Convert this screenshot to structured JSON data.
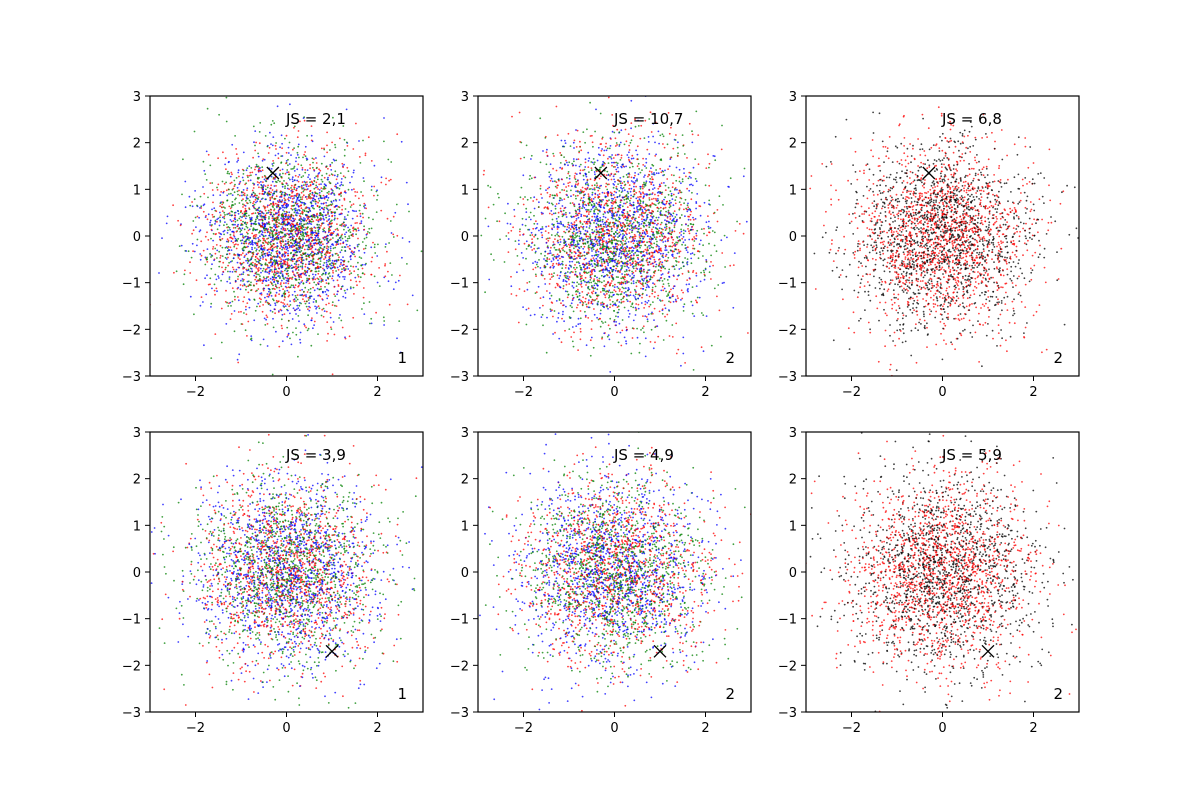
{
  "chart_data": [
    {
      "type": "scatter",
      "title": "",
      "xlabel": "",
      "ylabel": "",
      "xlim": [
        -3,
        3
      ],
      "ylim": [
        -3,
        3
      ],
      "xticks": [
        -2,
        0,
        2
      ],
      "yticks": [
        -3,
        -2,
        -1,
        0,
        1,
        2,
        3
      ],
      "xtick_labels": [
        "−2",
        "0",
        "2"
      ],
      "ytick_labels": [
        "−3",
        "−2",
        "−1",
        "0",
        "1",
        "2",
        "3"
      ],
      "grid": false,
      "annotation_text": "JS = 2,1",
      "corner_label": "1",
      "marker": {
        "x": -0.3,
        "y": 1.35,
        "symbol": "x",
        "color": "#000000"
      },
      "series": [
        {
          "color": "#ff0000",
          "distribution": "normal",
          "mean": [
            0,
            0
          ],
          "std": 0.9,
          "n": 1200
        },
        {
          "color": "#008000",
          "distribution": "normal",
          "mean": [
            0,
            0
          ],
          "std": 0.9,
          "n": 1200
        },
        {
          "color": "#0000ff",
          "distribution": "normal",
          "mean": [
            0,
            0
          ],
          "std": 0.9,
          "n": 1200
        }
      ]
    },
    {
      "type": "scatter",
      "title": "",
      "xlabel": "",
      "ylabel": "",
      "xlim": [
        -3,
        3
      ],
      "ylim": [
        -3,
        3
      ],
      "xticks": [
        -2,
        0,
        2
      ],
      "yticks": [
        -3,
        -2,
        -1,
        0,
        1,
        2,
        3
      ],
      "xtick_labels": [
        "−2",
        "0",
        "2"
      ],
      "ytick_labels": [
        "−3",
        "−2",
        "−1",
        "0",
        "1",
        "2",
        "3"
      ],
      "grid": false,
      "annotation_text": "JS = 10,7",
      "corner_label": "2",
      "marker": {
        "x": -0.3,
        "y": 1.35,
        "symbol": "x",
        "color": "#000000"
      },
      "series": [
        {
          "color": "#ff0000",
          "distribution": "normal",
          "mean": [
            0,
            0
          ],
          "std": 1.0,
          "n": 1200
        },
        {
          "color": "#008000",
          "distribution": "normal",
          "mean": [
            0,
            0
          ],
          "std": 1.0,
          "n": 1200
        },
        {
          "color": "#0000ff",
          "distribution": "normal",
          "mean": [
            0,
            0
          ],
          "std": 1.0,
          "n": 1200
        }
      ]
    },
    {
      "type": "scatter",
      "title": "",
      "xlabel": "",
      "ylabel": "",
      "xlim": [
        -3,
        3
      ],
      "ylim": [
        -3,
        3
      ],
      "xticks": [
        -2,
        0,
        2
      ],
      "yticks": [
        -3,
        -2,
        -1,
        0,
        1,
        2,
        3
      ],
      "xtick_labels": [
        "−2",
        "0",
        "2"
      ],
      "ytick_labels": [
        "−3",
        "−2",
        "−1",
        "0",
        "1",
        "2",
        "3"
      ],
      "grid": false,
      "annotation_text": "JS = 6,8",
      "corner_label": "2",
      "marker": {
        "x": -0.3,
        "y": 1.35,
        "symbol": "x",
        "color": "#000000"
      },
      "series": [
        {
          "color": "#000000",
          "distribution": "normal",
          "mean": [
            0,
            0
          ],
          "std": 0.95,
          "n": 1500
        },
        {
          "color": "#ff0000",
          "distribution": "normal",
          "mean": [
            0,
            0
          ],
          "std": 0.95,
          "n": 1500
        }
      ]
    },
    {
      "type": "scatter",
      "title": "",
      "xlabel": "",
      "ylabel": "",
      "xlim": [
        -3,
        3
      ],
      "ylim": [
        -3,
        3
      ],
      "xticks": [
        -2,
        0,
        2
      ],
      "yticks": [
        -3,
        -2,
        -1,
        0,
        1,
        2,
        3
      ],
      "xtick_labels": [
        "−2",
        "0",
        "2"
      ],
      "ytick_labels": [
        "−3",
        "−2",
        "−1",
        "0",
        "1",
        "2",
        "3"
      ],
      "grid": false,
      "annotation_text": "JS = 3,9",
      "corner_label": "1",
      "marker": {
        "x": 1.0,
        "y": -1.7,
        "symbol": "x",
        "color": "#000000"
      },
      "series": [
        {
          "color": "#ff0000",
          "distribution": "normal",
          "mean": [
            0,
            0
          ],
          "std": 1.0,
          "n": 1200
        },
        {
          "color": "#008000",
          "distribution": "normal",
          "mean": [
            0,
            0
          ],
          "std": 1.0,
          "n": 1200
        },
        {
          "color": "#0000ff",
          "distribution": "normal",
          "mean": [
            0,
            0
          ],
          "std": 1.0,
          "n": 1200
        }
      ]
    },
    {
      "type": "scatter",
      "title": "",
      "xlabel": "",
      "ylabel": "",
      "xlim": [
        -3,
        3
      ],
      "ylim": [
        -3,
        3
      ],
      "xticks": [
        -2,
        0,
        2
      ],
      "yticks": [
        -3,
        -2,
        -1,
        0,
        1,
        2,
        3
      ],
      "xtick_labels": [
        "−2",
        "0",
        "2"
      ],
      "ytick_labels": [
        "−3",
        "−2",
        "−1",
        "0",
        "1",
        "2",
        "3"
      ],
      "grid": false,
      "annotation_text": "JS = 4,9",
      "corner_label": "2",
      "marker": {
        "x": 1.0,
        "y": -1.7,
        "symbol": "x",
        "color": "#000000"
      },
      "series": [
        {
          "color": "#ff0000",
          "distribution": "normal",
          "mean": [
            0,
            0
          ],
          "std": 1.0,
          "n": 1200
        },
        {
          "color": "#008000",
          "distribution": "normal",
          "mean": [
            0,
            0
          ],
          "std": 1.0,
          "n": 1200
        },
        {
          "color": "#0000ff",
          "distribution": "normal",
          "mean": [
            0,
            0
          ],
          "std": 1.0,
          "n": 1200
        }
      ]
    },
    {
      "type": "scatter",
      "title": "",
      "xlabel": "",
      "ylabel": "",
      "xlim": [
        -3,
        3
      ],
      "ylim": [
        -3,
        3
      ],
      "xticks": [
        -2,
        0,
        2
      ],
      "yticks": [
        -3,
        -2,
        -1,
        0,
        1,
        2,
        3
      ],
      "xtick_labels": [
        "−2",
        "0",
        "2"
      ],
      "ytick_labels": [
        "−3",
        "−2",
        "−1",
        "0",
        "1",
        "2",
        "3"
      ],
      "grid": false,
      "annotation_text": "JS = 5,9",
      "corner_label": "2",
      "marker": {
        "x": 1.0,
        "y": -1.7,
        "symbol": "x",
        "color": "#000000"
      },
      "series": [
        {
          "color": "#000000",
          "distribution": "normal",
          "mean": [
            0,
            0
          ],
          "std": 1.05,
          "n": 1500
        },
        {
          "color": "#ff0000",
          "distribution": "normal",
          "mean": [
            0,
            0
          ],
          "std": 1.05,
          "n": 1500
        }
      ]
    }
  ]
}
